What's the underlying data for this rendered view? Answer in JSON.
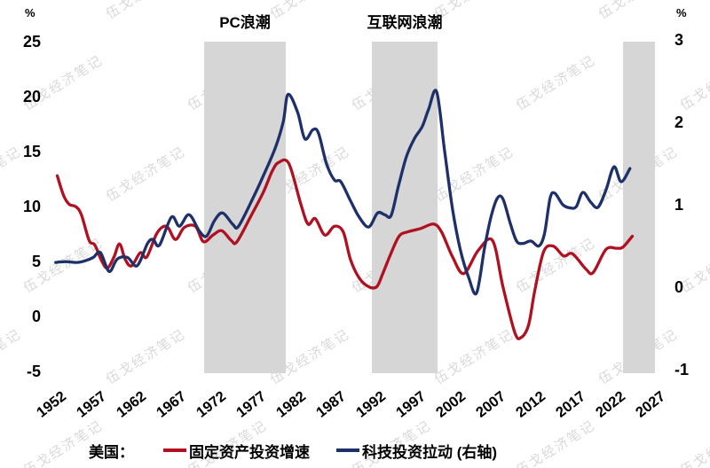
{
  "watermark": {
    "text": "伍戈经济笔记",
    "color": "#d9d9d9"
  },
  "annotations": {
    "pc_wave": "PC浪潮",
    "internet_wave": "互联网浪潮"
  },
  "legend": {
    "prefix": "美国：",
    "items": [
      {
        "label": "固定资产投资增速",
        "color": "#b01020"
      },
      {
        "label": "科技投资拉动 (右轴)",
        "color": "#1d3069"
      }
    ]
  },
  "chart_data": {
    "type": "line",
    "title": "",
    "x_axis": {
      "ticks": [
        1952,
        1957,
        1962,
        1967,
        1972,
        1977,
        1982,
        1987,
        1992,
        1997,
        2002,
        2007,
        2012,
        2017,
        2022,
        2027
      ],
      "range": [
        1952,
        2028
      ]
    },
    "left_axis": {
      "unit": "%",
      "ticks": [
        25,
        20,
        15,
        10,
        5,
        0,
        -5
      ],
      "range": [
        -5,
        25
      ]
    },
    "right_axis": {
      "unit": "%",
      "ticks": [
        3,
        2,
        1,
        0,
        -1
      ],
      "range": [
        -1,
        3
      ]
    },
    "grid": false,
    "legend_position": "bottom",
    "shaded_bands": [
      {
        "label": "PC浪潮",
        "x0": 1970.9,
        "x1": 1981.1
      },
      {
        "label": "互联网浪潮",
        "x0": 1991.9,
        "x1": 2000.1
      },
      {
        "label": "",
        "x0": 2023.3,
        "x1": 2027.3
      }
    ],
    "series": [
      {
        "name": "固定资产投资增速",
        "axis": "left",
        "color": "#b01020",
        "points": [
          [
            1952.5,
            12.8
          ],
          [
            1953.3,
            11.0
          ],
          [
            1954.0,
            10.2
          ],
          [
            1954.8,
            10.0
          ],
          [
            1955.5,
            9.3
          ],
          [
            1956.5,
            6.9
          ],
          [
            1957.2,
            6.5
          ],
          [
            1958.1,
            5.0
          ],
          [
            1958.8,
            4.4
          ],
          [
            1959.6,
            5.4
          ],
          [
            1960.3,
            6.6
          ],
          [
            1961.0,
            5.2
          ],
          [
            1961.8,
            4.6
          ],
          [
            1962.9,
            5.8
          ],
          [
            1963.7,
            5.4
          ],
          [
            1965.0,
            7.6
          ],
          [
            1966.2,
            8.2
          ],
          [
            1967.3,
            7.0
          ],
          [
            1968.4,
            8.1
          ],
          [
            1969.8,
            8.2
          ],
          [
            1970.8,
            6.8
          ],
          [
            1972.0,
            7.4
          ],
          [
            1973.1,
            7.8
          ],
          [
            1974.3,
            6.9
          ],
          [
            1975.0,
            6.8
          ],
          [
            1976.8,
            9.2
          ],
          [
            1978.3,
            11.3
          ],
          [
            1979.4,
            13.2
          ],
          [
            1980.2,
            14.0
          ],
          [
            1981.5,
            13.9
          ],
          [
            1983.0,
            10.2
          ],
          [
            1983.9,
            8.4
          ],
          [
            1984.8,
            8.9
          ],
          [
            1986.0,
            7.4
          ],
          [
            1987.2,
            8.2
          ],
          [
            1988.3,
            7.7
          ],
          [
            1989.2,
            5.2
          ],
          [
            1990.3,
            3.5
          ],
          [
            1991.5,
            2.7
          ],
          [
            1992.5,
            2.7
          ],
          [
            1993.2,
            3.8
          ],
          [
            1994.2,
            5.6
          ],
          [
            1995.3,
            7.3
          ],
          [
            1996.4,
            7.7
          ],
          [
            1998.0,
            8.0
          ],
          [
            1999.6,
            8.4
          ],
          [
            2000.6,
            7.7
          ],
          [
            2002.0,
            5.4
          ],
          [
            2003.4,
            3.9
          ],
          [
            2005.2,
            6.0
          ],
          [
            2007.0,
            6.9
          ],
          [
            2008.3,
            2.7
          ],
          [
            2009.8,
            -1.5
          ],
          [
            2010.6,
            -1.9
          ],
          [
            2011.5,
            -0.8
          ],
          [
            2012.3,
            2.4
          ],
          [
            2013.4,
            5.9
          ],
          [
            2014.6,
            6.4
          ],
          [
            2015.9,
            5.5
          ],
          [
            2017.0,
            5.7
          ],
          [
            2018.7,
            4.3
          ],
          [
            2019.6,
            4.0
          ],
          [
            2021.2,
            6.1
          ],
          [
            2022.5,
            6.2
          ],
          [
            2023.3,
            6.3
          ],
          [
            2024.5,
            7.3
          ]
        ]
      },
      {
        "name": "科技投资拉动 (右轴)",
        "axis": "right",
        "color": "#1d3069",
        "points": [
          [
            1952.3,
            0.3
          ],
          [
            1953.5,
            0.31
          ],
          [
            1955.0,
            0.3
          ],
          [
            1956.0,
            0.32
          ],
          [
            1957.0,
            0.36
          ],
          [
            1957.9,
            0.42
          ],
          [
            1959.0,
            0.19
          ],
          [
            1960.0,
            0.34
          ],
          [
            1961.3,
            0.36
          ],
          [
            1962.5,
            0.26
          ],
          [
            1963.8,
            0.53
          ],
          [
            1964.5,
            0.58
          ],
          [
            1965.3,
            0.51
          ],
          [
            1966.8,
            0.85
          ],
          [
            1967.8,
            0.74
          ],
          [
            1969.0,
            0.88
          ],
          [
            1970.3,
            0.68
          ],
          [
            1971.2,
            0.62
          ],
          [
            1972.2,
            0.81
          ],
          [
            1973.2,
            0.9
          ],
          [
            1974.5,
            0.76
          ],
          [
            1975.2,
            0.74
          ],
          [
            1977.0,
            1.08
          ],
          [
            1978.2,
            1.33
          ],
          [
            1979.8,
            1.69
          ],
          [
            1980.8,
            2.01
          ],
          [
            1981.4,
            2.34
          ],
          [
            1982.6,
            2.12
          ],
          [
            1983.5,
            1.8
          ],
          [
            1984.5,
            1.91
          ],
          [
            1985.2,
            1.87
          ],
          [
            1986.2,
            1.5
          ],
          [
            1987.2,
            1.3
          ],
          [
            1988.0,
            1.28
          ],
          [
            1989.2,
            1.05
          ],
          [
            1990.3,
            0.85
          ],
          [
            1991.5,
            0.73
          ],
          [
            1992.6,
            0.9
          ],
          [
            1993.5,
            0.88
          ],
          [
            1994.3,
            0.87
          ],
          [
            1995.2,
            1.22
          ],
          [
            1996.2,
            1.58
          ],
          [
            1997.2,
            1.8
          ],
          [
            1998.2,
            1.95
          ],
          [
            1999.0,
            2.16
          ],
          [
            2000.0,
            2.37
          ],
          [
            2001.0,
            1.65
          ],
          [
            2002.0,
            0.94
          ],
          [
            2003.0,
            0.44
          ],
          [
            2004.0,
            0.12
          ],
          [
            2005.0,
            -0.07
          ],
          [
            2006.0,
            0.48
          ],
          [
            2006.8,
            0.85
          ],
          [
            2007.6,
            1.08
          ],
          [
            2008.3,
            1.07
          ],
          [
            2009.2,
            0.78
          ],
          [
            2010.0,
            0.56
          ],
          [
            2010.8,
            0.53
          ],
          [
            2011.8,
            0.56
          ],
          [
            2012.8,
            0.5
          ],
          [
            2013.5,
            0.65
          ],
          [
            2014.2,
            1.08
          ],
          [
            2014.8,
            1.14
          ],
          [
            2015.8,
            1.0
          ],
          [
            2016.8,
            0.96
          ],
          [
            2017.5,
            0.98
          ],
          [
            2018.3,
            1.15
          ],
          [
            2019.3,
            1.03
          ],
          [
            2020.2,
            0.97
          ],
          [
            2021.2,
            1.18
          ],
          [
            2022.2,
            1.46
          ],
          [
            2023.1,
            1.28
          ],
          [
            2024.2,
            1.44
          ]
        ]
      }
    ]
  }
}
